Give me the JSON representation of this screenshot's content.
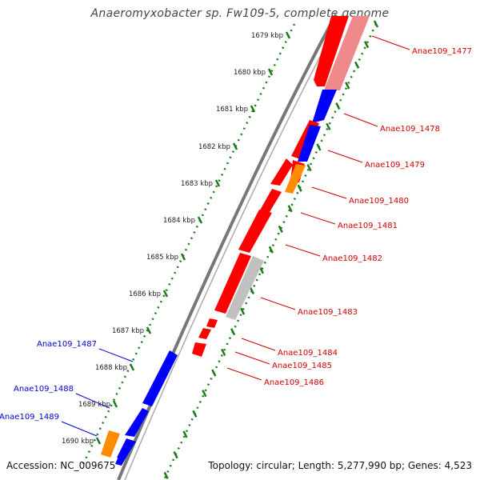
{
  "title": "Anaeromyxobacter sp. Fw109-5, complete genome",
  "footer": {
    "accession": "Accession: NC_009675",
    "topology": "Topology: circular; Length: 5,277,990 bp; Genes: 4,523"
  },
  "colors": {
    "forward": "#ff0000",
    "reverse": "#0000ff",
    "rna": "#ff8c00",
    "pseudo": "#c0c0c0",
    "faded": "#f08a8a",
    "tick": "#1a7a1a",
    "backbone": "#777777",
    "label_red": "#cc0000",
    "label_blue": "#0000cc"
  },
  "scale_labels": [
    "1679 kbp",
    "1680 kbp",
    "1681 kbp",
    "1682 kbp",
    "1683 kbp",
    "1684 kbp",
    "1685 kbp",
    "1686 kbp",
    "1687 kbp",
    "1688 kbp",
    "1689 kbp",
    "1690 kbp"
  ],
  "genes": [
    {
      "name": "Anae109_1477",
      "strand": "forward",
      "color": "forward"
    },
    {
      "name": "Anae109_1478",
      "strand": "forward",
      "color": "reverse"
    },
    {
      "name": "Anae109_1479",
      "strand": "forward",
      "color": "reverse"
    },
    {
      "name": "Anae109_1480",
      "strand": "forward",
      "color": "rna"
    },
    {
      "name": "Anae109_1481",
      "strand": "forward",
      "color": "forward"
    },
    {
      "name": "Anae109_1482",
      "strand": "forward",
      "color": "forward"
    },
    {
      "name": "Anae109_1483",
      "strand": "forward",
      "color": "pseudo"
    },
    {
      "name": "Anae109_1484",
      "strand": "forward",
      "color": "forward"
    },
    {
      "name": "Anae109_1485",
      "strand": "forward",
      "color": "forward"
    },
    {
      "name": "Anae109_1486",
      "strand": "forward",
      "color": "forward"
    },
    {
      "name": "Anae109_1487",
      "strand": "reverse",
      "color": "reverse"
    },
    {
      "name": "Anae109_1488",
      "strand": "reverse",
      "color": "reverse"
    },
    {
      "name": "Anae109_1489",
      "strand": "reverse",
      "color": "rna"
    }
  ]
}
